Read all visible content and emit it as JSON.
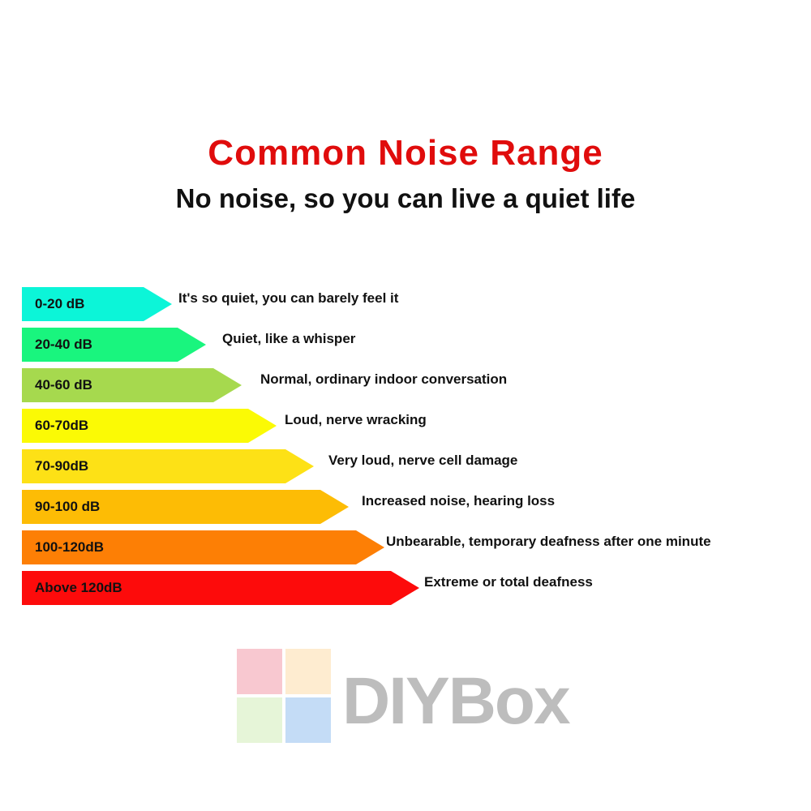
{
  "header": {
    "title": "Common Noise Range",
    "subtitle": "No noise, so you can live a quiet life"
  },
  "levels": [
    {
      "range": "0-20 dB",
      "description": "It's so quiet, you can barely feel it",
      "color": "#0cf5d8"
    },
    {
      "range": "20-40 dB",
      "description": "Quiet, like a whisper",
      "color": "#19f57e"
    },
    {
      "range": "40-60 dB",
      "description": "Normal, ordinary indoor conversation",
      "color": "#a6d94e"
    },
    {
      "range": "60-70dB",
      "description": "Loud, nerve wracking",
      "color": "#fbfa05"
    },
    {
      "range": "70-90dB",
      "description": "Very loud, nerve cell damage",
      "color": "#fde116"
    },
    {
      "range": "90-100 dB",
      "description": "Increased noise, hearing loss",
      "color": "#fdbc05"
    },
    {
      "range": "100-120dB",
      "description": "Unbearable, temporary deafness after one minute",
      "color": "#fd7f05"
    },
    {
      "range": "Above 120dB",
      "description": "Extreme or total deafness",
      "color": "#fd0b0b"
    }
  ],
  "watermark": {
    "text": "DIYBox"
  },
  "colors": {
    "title": "#e00c0c",
    "text": "#111111"
  }
}
